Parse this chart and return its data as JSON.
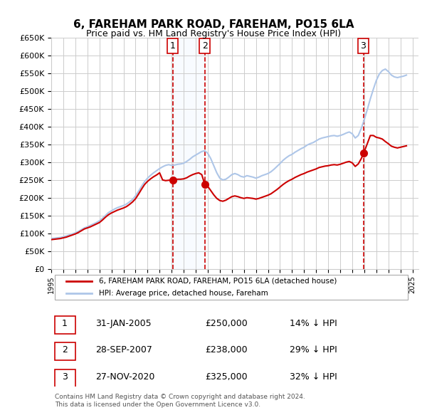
{
  "title": "6, FAREHAM PARK ROAD, FAREHAM, PO15 6LA",
  "subtitle": "Price paid vs. HM Land Registry's House Price Index (HPI)",
  "xlabel": "",
  "ylabel": "",
  "ylim": [
    0,
    650000
  ],
  "yticks": [
    0,
    50000,
    100000,
    150000,
    200000,
    250000,
    300000,
    350000,
    400000,
    450000,
    500000,
    550000,
    600000,
    650000
  ],
  "xlim_start": 1995.0,
  "xlim_end": 2025.5,
  "hpi_color": "#aec6e8",
  "price_color": "#cc0000",
  "sale_marker_color": "#cc0000",
  "grid_color": "#cccccc",
  "bg_color": "#ffffff",
  "legend_label_price": "6, FAREHAM PARK ROAD, FAREHAM, PO15 6LA (detached house)",
  "legend_label_hpi": "HPI: Average price, detached house, Fareham",
  "sales": [
    {
      "num": 1,
      "date": "31-JAN-2005",
      "price": 250000,
      "pct": "14%",
      "x": 2005.08
    },
    {
      "num": 2,
      "date": "28-SEP-2007",
      "price": 238000,
      "pct": "29%",
      "x": 2007.75
    },
    {
      "num": 3,
      "date": "27-NOV-2020",
      "price": 325000,
      "pct": "32%",
      "x": 2020.92
    }
  ],
  "vline_color": "#cc0000",
  "shade_color": "#ddeeff",
  "footer": "Contains HM Land Registry data © Crown copyright and database right 2024.\nThis data is licensed under the Open Government Licence v3.0.",
  "hpi_data_x": [
    1995.0,
    1995.25,
    1995.5,
    1995.75,
    1996.0,
    1996.25,
    1996.5,
    1996.75,
    1997.0,
    1997.25,
    1997.5,
    1997.75,
    1998.0,
    1998.25,
    1998.5,
    1998.75,
    1999.0,
    1999.25,
    1999.5,
    1999.75,
    2000.0,
    2000.25,
    2000.5,
    2000.75,
    2001.0,
    2001.25,
    2001.5,
    2001.75,
    2002.0,
    2002.25,
    2002.5,
    2002.75,
    2003.0,
    2003.25,
    2003.5,
    2003.75,
    2004.0,
    2004.25,
    2004.5,
    2004.75,
    2005.0,
    2005.25,
    2005.5,
    2005.75,
    2006.0,
    2006.25,
    2006.5,
    2006.75,
    2007.0,
    2007.25,
    2007.5,
    2007.75,
    2008.0,
    2008.25,
    2008.5,
    2008.75,
    2009.0,
    2009.25,
    2009.5,
    2009.75,
    2010.0,
    2010.25,
    2010.5,
    2010.75,
    2011.0,
    2011.25,
    2011.5,
    2011.75,
    2012.0,
    2012.25,
    2012.5,
    2012.75,
    2013.0,
    2013.25,
    2013.5,
    2013.75,
    2014.0,
    2014.25,
    2014.5,
    2014.75,
    2015.0,
    2015.25,
    2015.5,
    2015.75,
    2016.0,
    2016.25,
    2016.5,
    2016.75,
    2017.0,
    2017.25,
    2017.5,
    2017.75,
    2018.0,
    2018.25,
    2018.5,
    2018.75,
    2019.0,
    2019.25,
    2019.5,
    2019.75,
    2020.0,
    2020.25,
    2020.5,
    2020.75,
    2021.0,
    2021.25,
    2021.5,
    2021.75,
    2022.0,
    2022.25,
    2022.5,
    2022.75,
    2023.0,
    2023.25,
    2023.5,
    2023.75,
    2024.0,
    2024.25,
    2024.5
  ],
  "hpi_data_y": [
    85000,
    86000,
    87000,
    88000,
    90000,
    92000,
    95000,
    98000,
    101000,
    105000,
    110000,
    115000,
    118000,
    122000,
    126000,
    130000,
    135000,
    142000,
    150000,
    158000,
    163000,
    168000,
    172000,
    175000,
    178000,
    182000,
    188000,
    195000,
    205000,
    218000,
    232000,
    245000,
    255000,
    263000,
    270000,
    276000,
    282000,
    287000,
    291000,
    293000,
    291000,
    292000,
    294000,
    295000,
    297000,
    302000,
    308000,
    315000,
    320000,
    325000,
    330000,
    332000,
    325000,
    310000,
    290000,
    270000,
    255000,
    250000,
    252000,
    258000,
    265000,
    268000,
    265000,
    260000,
    258000,
    262000,
    260000,
    258000,
    255000,
    258000,
    262000,
    265000,
    268000,
    273000,
    280000,
    288000,
    296000,
    305000,
    312000,
    318000,
    322000,
    328000,
    333000,
    338000,
    342000,
    348000,
    352000,
    355000,
    360000,
    365000,
    368000,
    370000,
    372000,
    374000,
    375000,
    373000,
    375000,
    378000,
    382000,
    385000,
    380000,
    368000,
    375000,
    395000,
    420000,
    448000,
    478000,
    505000,
    530000,
    548000,
    558000,
    562000,
    555000,
    545000,
    540000,
    538000,
    540000,
    542000,
    545000
  ],
  "price_data_x": [
    1995.0,
    1995.25,
    1995.5,
    1995.75,
    1996.0,
    1996.25,
    1996.5,
    1996.75,
    1997.0,
    1997.25,
    1997.5,
    1997.75,
    1998.0,
    1998.25,
    1998.5,
    1998.75,
    1999.0,
    1999.25,
    1999.5,
    1999.75,
    2000.0,
    2000.25,
    2000.5,
    2000.75,
    2001.0,
    2001.25,
    2001.5,
    2001.75,
    2002.0,
    2002.25,
    2002.5,
    2002.75,
    2003.0,
    2003.25,
    2003.5,
    2003.75,
    2004.0,
    2004.25,
    2004.5,
    2004.75,
    2005.0,
    2005.25,
    2005.5,
    2005.75,
    2006.0,
    2006.25,
    2006.5,
    2006.75,
    2007.0,
    2007.25,
    2007.5,
    2007.75,
    2008.0,
    2008.25,
    2008.5,
    2008.75,
    2009.0,
    2009.25,
    2009.5,
    2009.75,
    2010.0,
    2010.25,
    2010.5,
    2010.75,
    2011.0,
    2011.25,
    2011.5,
    2011.75,
    2012.0,
    2012.25,
    2012.5,
    2012.75,
    2013.0,
    2013.25,
    2013.5,
    2013.75,
    2014.0,
    2014.25,
    2014.5,
    2014.75,
    2015.0,
    2015.25,
    2015.5,
    2015.75,
    2016.0,
    2016.25,
    2016.5,
    2016.75,
    2017.0,
    2017.25,
    2017.5,
    2017.75,
    2018.0,
    2018.25,
    2018.5,
    2018.75,
    2019.0,
    2019.25,
    2019.5,
    2019.75,
    2020.0,
    2020.25,
    2020.5,
    2020.75,
    2021.0,
    2021.25,
    2021.5,
    2021.75,
    2022.0,
    2022.25,
    2022.5,
    2022.75,
    2023.0,
    2023.25,
    2023.5,
    2023.75,
    2024.0,
    2024.25,
    2024.5
  ],
  "price_data_y": [
    82000,
    83000,
    84000,
    85000,
    87000,
    89000,
    92000,
    95000,
    98000,
    102000,
    107000,
    112000,
    115000,
    118000,
    122000,
    126000,
    130000,
    137000,
    145000,
    152000,
    157000,
    161000,
    165000,
    168000,
    171000,
    175000,
    181000,
    188000,
    197000,
    210000,
    224000,
    237000,
    246000,
    253000,
    259000,
    264000,
    270000,
    250000,
    248000,
    249000,
    250000,
    251000,
    252000,
    252000,
    253000,
    256000,
    261000,
    265000,
    268000,
    270000,
    265000,
    238000,
    232000,
    220000,
    208000,
    198000,
    192000,
    190000,
    193000,
    198000,
    203000,
    205000,
    203000,
    200000,
    198000,
    200000,
    199000,
    198000,
    196000,
    198000,
    201000,
    204000,
    207000,
    211000,
    217000,
    223000,
    230000,
    237000,
    243000,
    248000,
    252000,
    257000,
    261000,
    265000,
    268000,
    272000,
    275000,
    278000,
    281000,
    285000,
    287000,
    289000,
    290000,
    292000,
    293000,
    292000,
    294000,
    297000,
    300000,
    302000,
    298000,
    288000,
    295000,
    310000,
    330000,
    352000,
    375000,
    375000,
    370000,
    368000,
    365000,
    358000,
    352000,
    345000,
    342000,
    340000,
    342000,
    344000,
    346000
  ]
}
